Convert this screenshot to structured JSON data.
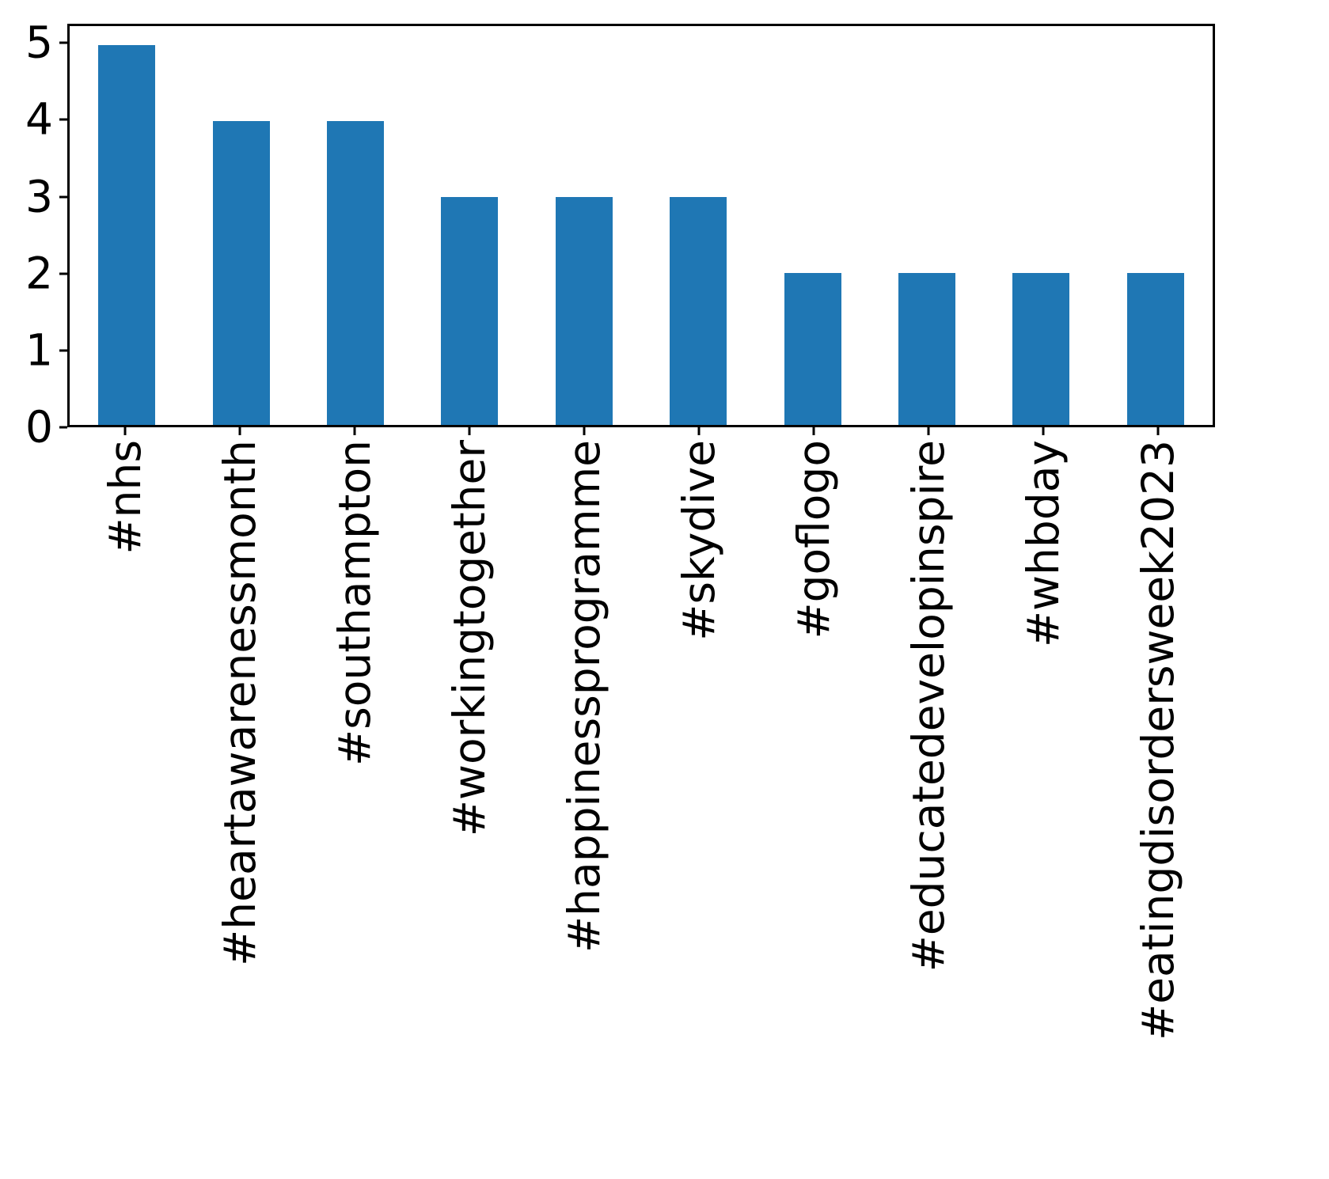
{
  "chart_data": {
    "type": "bar",
    "categories": [
      "#nhs",
      "#heartawarenessmonth",
      "#southampton",
      "#workingtogether",
      "#happinessprogramme",
      "#skydive",
      "#goflogo",
      "#educatedevelopinspire",
      "#whbday",
      "#eatingdisordersweek2023"
    ],
    "values": [
      5,
      4,
      4,
      3,
      3,
      3,
      2,
      2,
      2,
      2
    ],
    "title": "",
    "xlabel": "",
    "ylabel": "",
    "ylim": [
      0,
      5.25
    ],
    "yticks": [
      0,
      1,
      2,
      3,
      4,
      5
    ],
    "bar_width_fraction": 0.5,
    "grid": false,
    "legend": null,
    "x_tick_rotation_degrees": 90
  },
  "colors": {
    "bar": "#1f77b4",
    "axis": "#000000",
    "background": "#ffffff",
    "text": "#000000"
  }
}
